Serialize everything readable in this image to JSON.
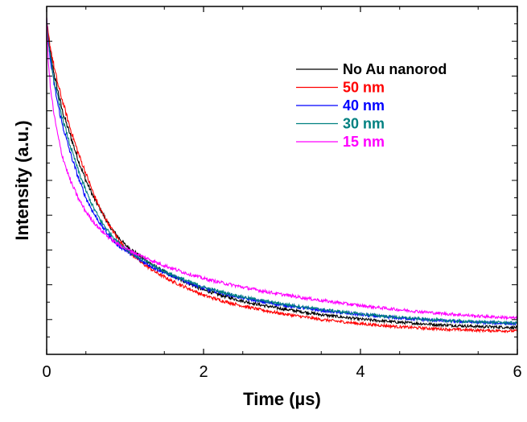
{
  "chart_data": {
    "type": "line",
    "title": "",
    "xlabel": "Time (µs)",
    "ylabel": "Intensity (a.u.)",
    "xlim": [
      0,
      6
    ],
    "ylim": [
      0,
      1
    ],
    "x_ticks": [
      "0",
      "2",
      "4",
      "6"
    ],
    "x_tick_values": [
      0,
      2,
      4,
      6
    ],
    "y_tick_labels_shown": false,
    "grid": false,
    "legend_position": "top-right",
    "x": [
      0,
      0.02,
      0.05,
      0.1,
      0.15,
      0.2,
      0.3,
      0.4,
      0.5,
      0.6,
      0.7,
      0.8,
      0.9,
      1.0,
      1.2,
      1.4,
      1.6,
      1.8,
      2.0,
      2.25,
      2.5,
      2.75,
      3.0,
      3.5,
      4.0,
      4.5,
      5.0,
      5.5,
      6.0
    ],
    "series": [
      {
        "name": "No Au nanorod",
        "color": "#000000",
        "values": [
          0.96,
          0.91,
          0.86,
          0.8,
          0.75,
          0.7,
          0.63,
          0.56,
          0.5,
          0.45,
          0.41,
          0.37,
          0.34,
          0.315,
          0.28,
          0.25,
          0.225,
          0.205,
          0.185,
          0.168,
          0.153,
          0.141,
          0.131,
          0.114,
          0.101,
          0.092,
          0.085,
          0.08,
          0.077
        ]
      },
      {
        "name": "50 nm",
        "color": "#ff0000",
        "values": [
          0.96,
          0.92,
          0.88,
          0.82,
          0.77,
          0.73,
          0.65,
          0.58,
          0.52,
          0.46,
          0.41,
          0.37,
          0.335,
          0.305,
          0.265,
          0.235,
          0.21,
          0.19,
          0.17,
          0.153,
          0.139,
          0.127,
          0.117,
          0.1,
          0.088,
          0.079,
          0.073,
          0.069,
          0.067
        ]
      },
      {
        "name": "40 nm",
        "color": "#0000ff",
        "values": [
          0.96,
          0.9,
          0.84,
          0.77,
          0.71,
          0.66,
          0.58,
          0.51,
          0.45,
          0.405,
          0.37,
          0.34,
          0.315,
          0.3,
          0.27,
          0.245,
          0.225,
          0.207,
          0.19,
          0.175,
          0.162,
          0.151,
          0.142,
          0.126,
          0.114,
          0.104,
          0.097,
          0.092,
          0.088
        ]
      },
      {
        "name": "30 nm",
        "color": "#008080",
        "values": [
          0.96,
          0.9,
          0.85,
          0.78,
          0.73,
          0.68,
          0.6,
          0.53,
          0.47,
          0.42,
          0.38,
          0.35,
          0.325,
          0.305,
          0.275,
          0.25,
          0.228,
          0.21,
          0.193,
          0.178,
          0.165,
          0.154,
          0.145,
          0.129,
          0.116,
          0.106,
          0.098,
          0.093,
          0.09
        ]
      },
      {
        "name": "15 nm",
        "color": "#ff00ff",
        "values": [
          0.96,
          0.85,
          0.76,
          0.68,
          0.62,
          0.57,
          0.5,
          0.45,
          0.41,
          0.38,
          0.355,
          0.335,
          0.318,
          0.305,
          0.283,
          0.264,
          0.247,
          0.232,
          0.218,
          0.205,
          0.193,
          0.182,
          0.172,
          0.155,
          0.14,
          0.128,
          0.118,
          0.11,
          0.104
        ]
      }
    ]
  }
}
